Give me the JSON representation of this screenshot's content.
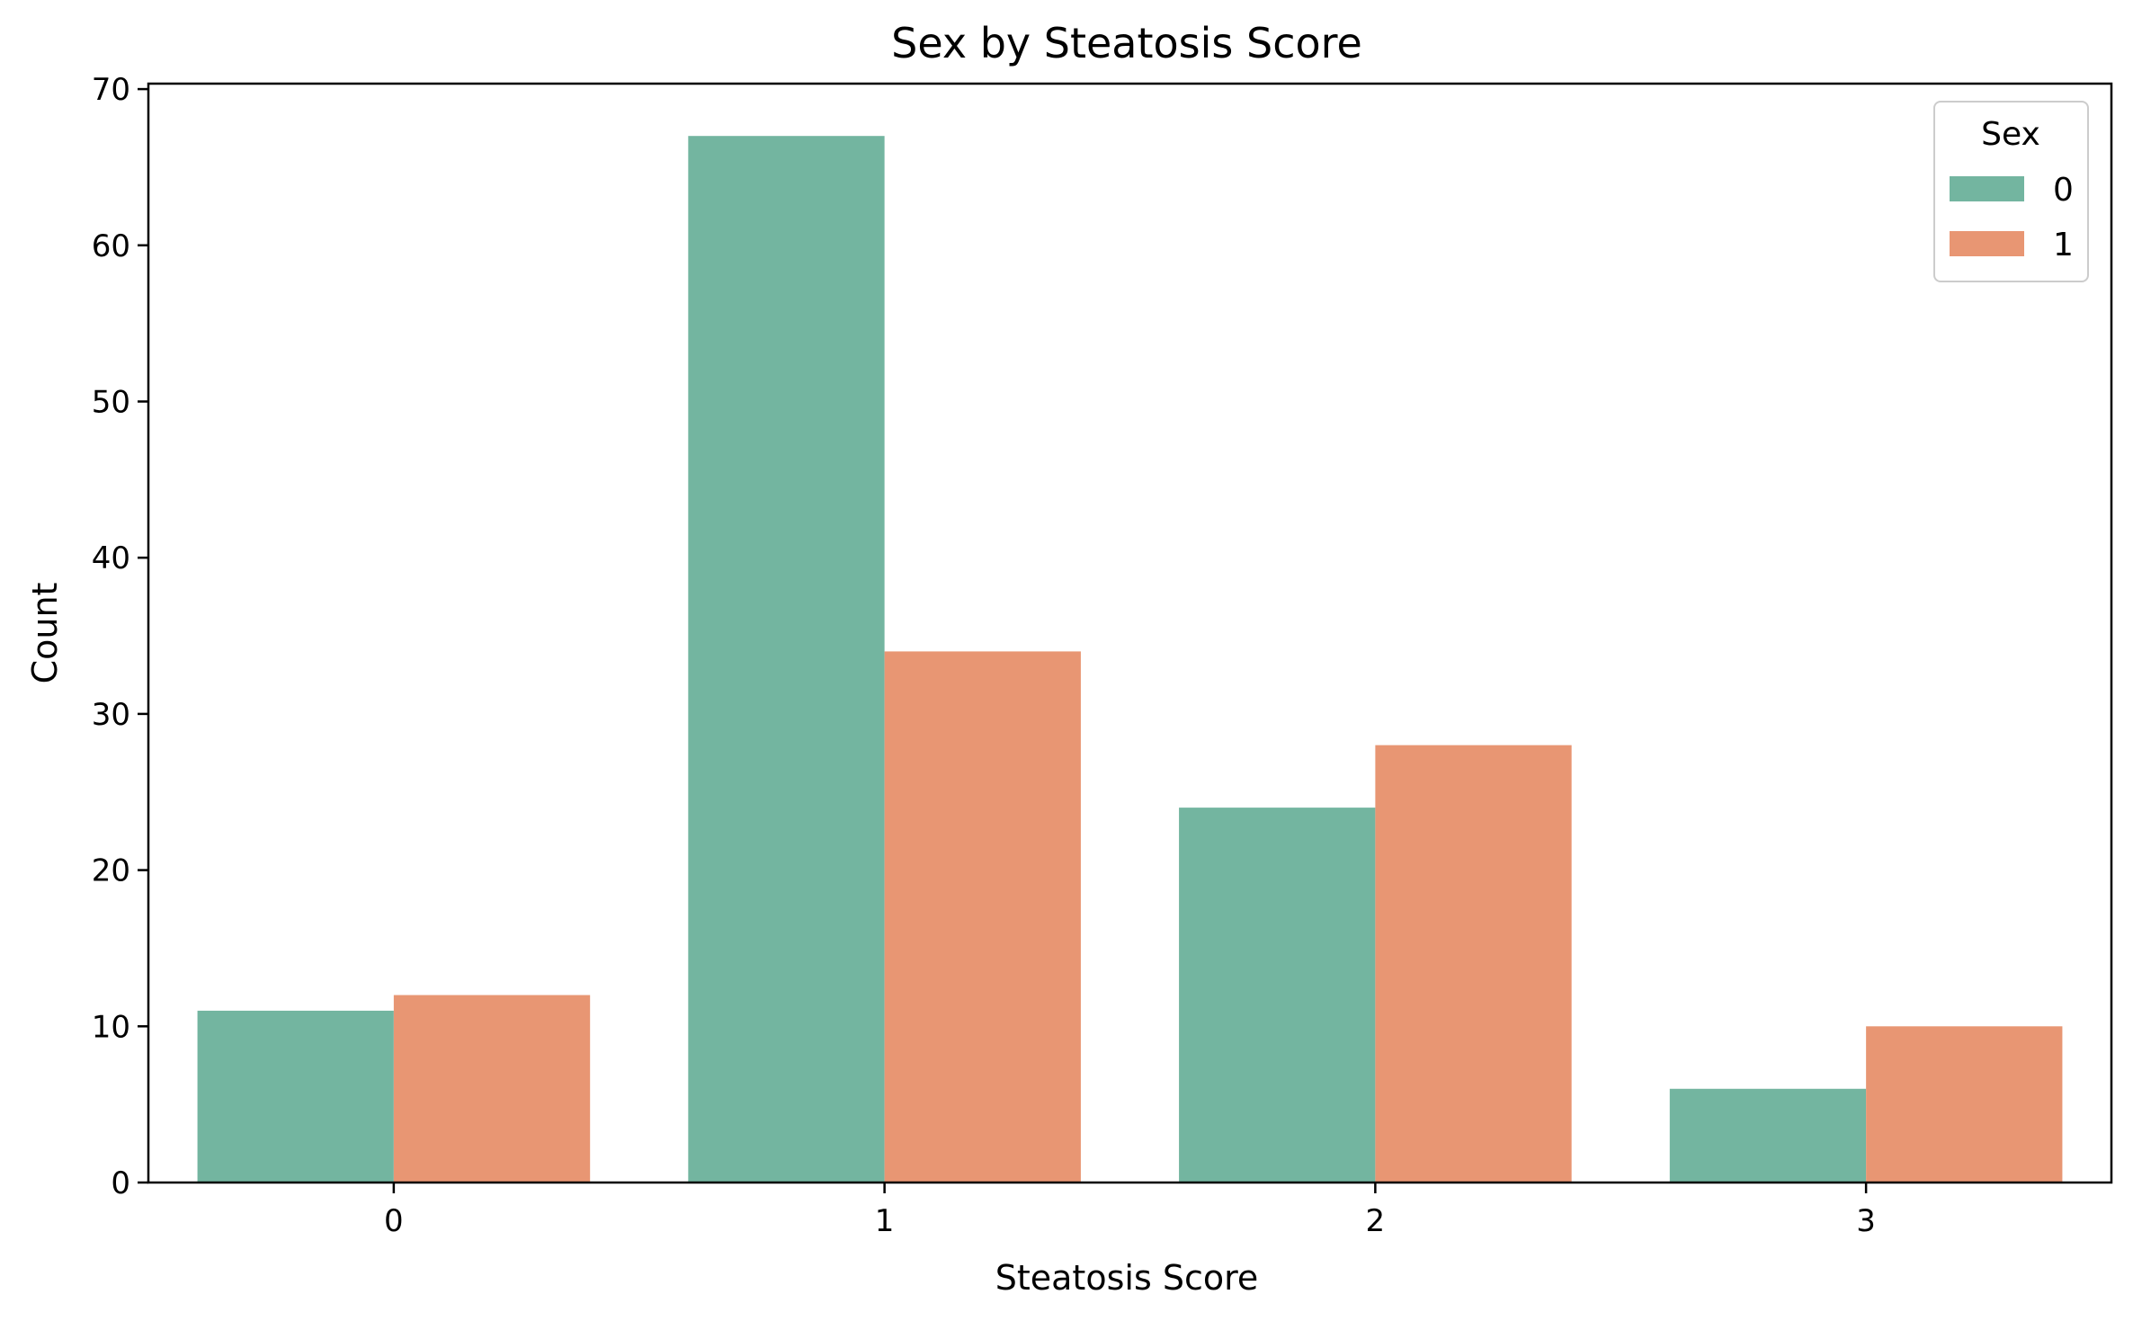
{
  "chart_data": {
    "type": "bar",
    "title": "Sex by Steatosis Score",
    "xlabel": "Steatosis Score",
    "ylabel": "Count",
    "categories": [
      "0",
      "1",
      "2",
      "3"
    ],
    "series": [
      {
        "name": "0",
        "color": "#73b5a0",
        "values": [
          11,
          67,
          24,
          6
        ]
      },
      {
        "name": "1",
        "color": "#e89673",
        "values": [
          12,
          34,
          28,
          10
        ]
      }
    ],
    "ylim": [
      0,
      70.35
    ],
    "yticks": [
      0,
      10,
      20,
      30,
      40,
      50,
      60,
      70
    ],
    "grid": false,
    "legend": {
      "title": "Sex",
      "placement": "top-right"
    }
  }
}
